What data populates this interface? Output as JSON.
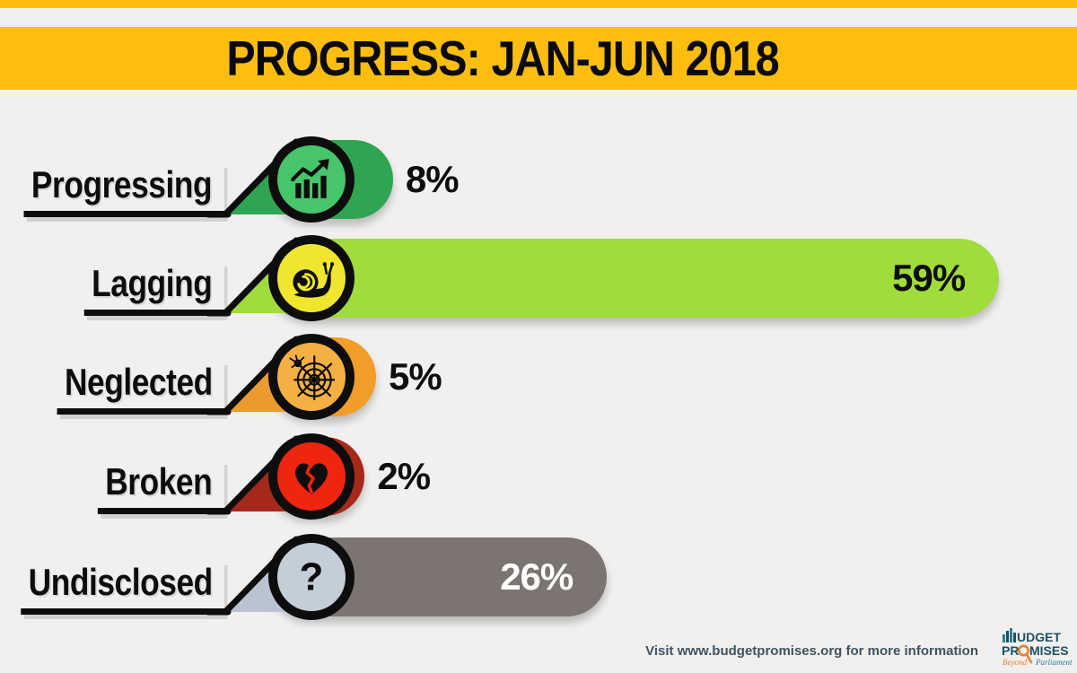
{
  "title": "PROGRESS: JAN-JUN 2018",
  "chart_data": {
    "type": "bar",
    "orientation": "horizontal",
    "title": "PROGRESS: JAN-JUN 2018",
    "unit": "%",
    "xlim": [
      0,
      65
    ],
    "categories": [
      "Progressing",
      "Lagging",
      "Neglected",
      "Broken",
      "Undisclosed"
    ],
    "values": [
      8,
      59,
      5,
      2,
      26
    ],
    "rows": [
      {
        "label": "Progressing",
        "value": 8,
        "value_label": "8%",
        "icon": "trending-up-chart",
        "bar_color": "#2fa552",
        "circle_color": "#47c56b",
        "wedge_color": "#2fa552",
        "value_position": "outside",
        "value_color": "#0d0d0d"
      },
      {
        "label": "Lagging",
        "value": 59,
        "value_label": "59%",
        "icon": "snail",
        "bar_color": "#a0dc3c",
        "circle_color": "#f0e62e",
        "wedge_color": "#a0dc3c",
        "value_position": "inside",
        "value_color": "#0d0d0d"
      },
      {
        "label": "Neglected",
        "value": 5,
        "value_label": "5%",
        "icon": "spider-web",
        "bar_color": "#f19d28",
        "circle_color": "#f5b043",
        "wedge_color": "#eb9a30",
        "value_position": "outside",
        "value_color": "#0d0d0d"
      },
      {
        "label": "Broken",
        "value": 2,
        "value_label": "2%",
        "icon": "broken-heart",
        "bar_color": "#a5291b",
        "circle_color": "#f0250f",
        "wedge_color": "#a5291b",
        "value_position": "outside",
        "value_color": "#0d0d0d"
      },
      {
        "label": "Undisclosed",
        "value": 26,
        "value_label": "26%",
        "icon": "question-mark",
        "bar_color": "#7b7471",
        "circle_color": "#c3ced9",
        "wedge_color": "#b9c4d0",
        "value_position": "inside",
        "value_color": "#ffffff"
      }
    ]
  },
  "footer": {
    "note": "Visit www.budgetpromises.org for more information"
  },
  "logo": {
    "line1_rest": "UDGET",
    "line2_pre": "PR",
    "line2_post": "MISES",
    "tagline_left": "Beyond",
    "tagline_right": "Parliament",
    "teal": "#1c5163",
    "orange": "#e2812d"
  },
  "colors": {
    "background": "#f1f0ee",
    "band": "#fdbe10",
    "ink": "#0d0d0d"
  }
}
